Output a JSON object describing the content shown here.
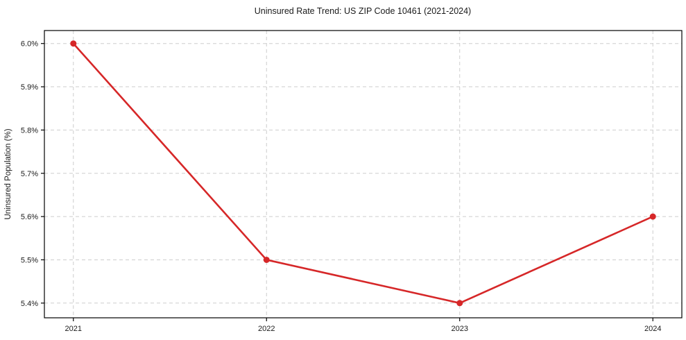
{
  "chart_data": {
    "type": "line",
    "title": "Uninsured Rate Trend: US ZIP Code 10461 (2021-2024)",
    "xlabel": "",
    "ylabel": "Uninsured Population (%)",
    "x": [
      2021,
      2022,
      2023,
      2024
    ],
    "x_tick_labels": [
      "2021",
      "2022",
      "2023",
      "2024"
    ],
    "series": [
      {
        "name": "Uninsured Rate",
        "values": [
          6.0,
          5.5,
          5.4,
          5.6
        ]
      }
    ],
    "y_ticks": [
      5.4,
      5.5,
      5.6,
      5.7,
      5.8,
      5.9,
      6.0
    ],
    "y_tick_labels": [
      "5.4%",
      "5.5%",
      "5.6%",
      "5.7%",
      "5.8%",
      "5.9%",
      "6.0%"
    ],
    "xlim": [
      2020.85,
      2024.15
    ],
    "ylim": [
      5.366,
      6.03
    ],
    "grid": true,
    "grid_style": "dashed",
    "legend_position": "none",
    "line_color": "#d62728",
    "marker": "circle",
    "grid_color": "#cdcdcd",
    "axis_color": "#000000",
    "background_color": "#ffffff"
  }
}
